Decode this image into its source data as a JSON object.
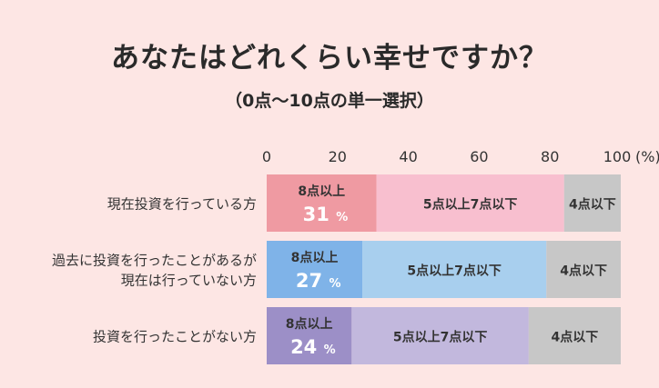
{
  "chart_data": {
    "type": "bar",
    "orientation": "horizontal-stacked-100",
    "title": "あなたはどれくらい幸せですか？",
    "subtitle": "（0点～10点の単一選択）",
    "x_ticks": [
      "0",
      "20",
      "40",
      "60",
      "80",
      "100"
    ],
    "x_unit": "(%)",
    "xlim": [
      0,
      100
    ],
    "grid": false,
    "categories": [
      [
        "現在投資を行っている方"
      ],
      [
        "過去に投資を行ったことがあるが",
        "現在は行っていない方"
      ],
      [
        "投資を行ったことがない方"
      ]
    ],
    "series": [
      {
        "name": "8点以上",
        "values": [
          31,
          27,
          24
        ],
        "value_labels": [
          "31",
          "27",
          "24"
        ],
        "colors": [
          "#ef9aa2",
          "#7fb3e8",
          "#9c8fc7"
        ]
      },
      {
        "name": "5点以上7点以下",
        "values": [
          53,
          52,
          50
        ],
        "colors": [
          "#f8bfcf",
          "#a8cfee",
          "#c2b8dd"
        ]
      },
      {
        "name": "4点以下",
        "values": [
          16,
          21,
          26
        ],
        "colors": [
          "#c7c7c7",
          "#c7c7c7",
          "#c7c7c7"
        ]
      }
    ],
    "percent_suffix": "%"
  }
}
